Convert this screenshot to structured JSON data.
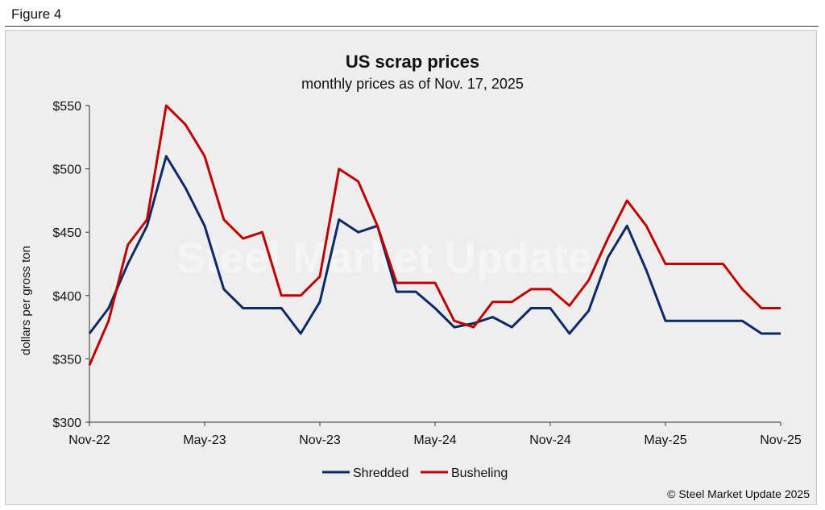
{
  "figure_label": "Figure 4",
  "watermark": "Steel Market Update",
  "copyright": "© Steel Market Update 2025",
  "colors": {
    "shredded": "#0d2a66",
    "busheling": "#c00000"
  },
  "chart_data": {
    "type": "line",
    "title": "US scrap prices",
    "subtitle": "monthly prices as of Nov. 17, 2025",
    "xlabel": "",
    "ylabel": "dollars per  gross ton",
    "ylim": [
      300,
      550
    ],
    "y_ticks": [
      300,
      350,
      400,
      450,
      500,
      550
    ],
    "y_tick_labels": [
      "$300",
      "$350",
      "$400",
      "$450",
      "$500",
      "$550"
    ],
    "x_tick_labels": [
      "Nov-22",
      "May-23",
      "Nov-23",
      "May-24",
      "Nov-24",
      "May-25",
      "Nov-25"
    ],
    "x_tick_indices": [
      0,
      6,
      12,
      18,
      24,
      30,
      36
    ],
    "categories": [
      "Nov-22",
      "Dec-22",
      "Jan-23",
      "Feb-23",
      "Mar-23",
      "Apr-23",
      "May-23",
      "Jun-23",
      "Jul-23",
      "Aug-23",
      "Sep-23",
      "Oct-23",
      "Nov-23",
      "Dec-23",
      "Jan-24",
      "Feb-24",
      "Mar-24",
      "Apr-24",
      "May-24",
      "Jun-24",
      "Jul-24",
      "Aug-24",
      "Sep-24",
      "Oct-24",
      "Nov-24",
      "Dec-24",
      "Jan-25",
      "Feb-25",
      "Mar-25",
      "Apr-25",
      "May-25",
      "Jun-25",
      "Jul-25",
      "Aug-25",
      "Sep-25",
      "Oct-25",
      "Nov-25"
    ],
    "series": [
      {
        "name": "Shredded",
        "values": [
          370,
          390,
          425,
          455,
          510,
          485,
          455,
          405,
          390,
          390,
          390,
          370,
          395,
          460,
          450,
          455,
          403,
          403,
          390,
          375,
          378,
          383,
          375,
          390,
          390,
          370,
          388,
          430,
          455,
          420,
          380,
          380,
          380,
          380,
          380,
          370,
          370
        ]
      },
      {
        "name": "Busheling",
        "values": [
          345,
          380,
          440,
          460,
          550,
          535,
          510,
          460,
          445,
          450,
          400,
          400,
          415,
          500,
          490,
          455,
          410,
          410,
          410,
          380,
          375,
          395,
          395,
          405,
          405,
          392,
          412,
          445,
          475,
          455,
          425,
          425,
          425,
          425,
          405,
          390,
          390
        ]
      }
    ],
    "legend_position": "bottom-center",
    "grid": false
  }
}
